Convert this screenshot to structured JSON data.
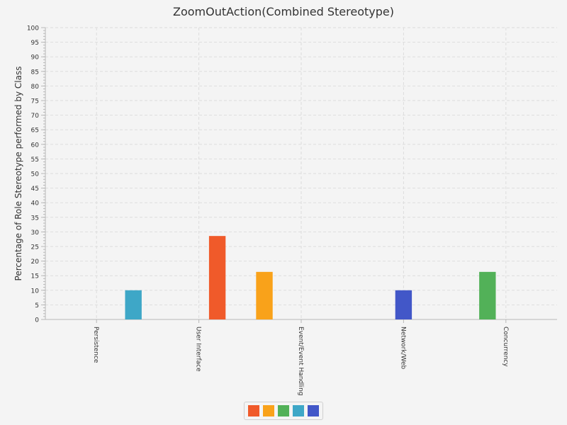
{
  "chart_data": {
    "type": "bar",
    "title": "ZoomOutAction(Combined Stereotype)",
    "xlabel": "",
    "ylabel": "Percentage of Role Stereotype performed by Class",
    "ylim": [
      0,
      100
    ],
    "y_ticks": [
      0,
      5,
      10,
      15,
      20,
      25,
      30,
      35,
      40,
      45,
      50,
      55,
      60,
      65,
      70,
      75,
      80,
      85,
      90,
      95,
      100
    ],
    "y_tick_labels": [
      "0",
      "5",
      "10",
      "15",
      "20",
      "25",
      "30",
      "35",
      "40",
      "45",
      "50",
      "55",
      "60",
      "65",
      "70",
      "75",
      "80",
      "85",
      "90",
      "95",
      "100"
    ],
    "categories": [
      "Persistence",
      "User Interface",
      "Event/Event Handling",
      "Network/Web",
      "Concurrency"
    ],
    "series": [
      {
        "color": "#f05a2a",
        "values": [
          0,
          28.6,
          0,
          0,
          0
        ]
      },
      {
        "color": "#f9a21a",
        "values": [
          0,
          0,
          16.3,
          0,
          0
        ]
      },
      {
        "color": "#52b158",
        "values": [
          0,
          0,
          0,
          0,
          16.3
        ]
      },
      {
        "color": "#3ea7c7",
        "values": [
          10,
          0,
          0,
          0,
          0
        ]
      },
      {
        "color": "#4257c8",
        "values": [
          0,
          0,
          0,
          10,
          0
        ]
      }
    ],
    "bar_order_in_group": [
      3,
      0,
      1,
      4,
      2
    ],
    "grid": true,
    "legend_position": "bottom"
  }
}
